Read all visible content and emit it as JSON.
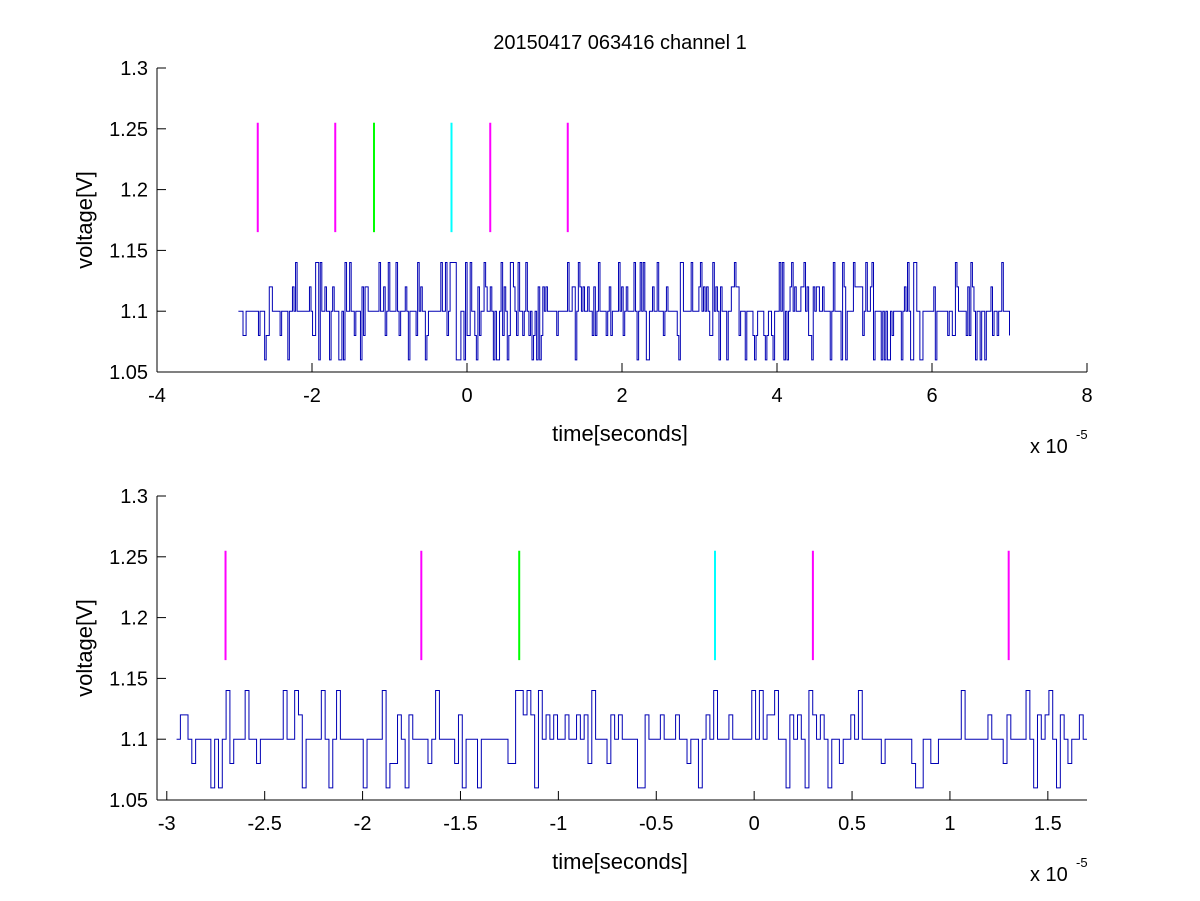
{
  "title": "20150417 063416 channel 1",
  "chart_data": [
    {
      "type": "line",
      "xlabel": "time[seconds]",
      "ylabel": "voltage[V]",
      "x_multiplier": "x 10",
      "x_exponent": "-5",
      "xlim": [
        -4,
        8
      ],
      "ylim": [
        1.05,
        1.3
      ],
      "x_ticks": [
        -4,
        -2,
        0,
        2,
        4,
        6,
        8
      ],
      "x_tick_labels": [
        "-4",
        "-2",
        "0",
        "2",
        "4",
        "6",
        "8"
      ],
      "y_ticks": [
        1.05,
        1.1,
        1.15,
        1.2,
        1.25,
        1.3
      ],
      "y_tick_labels": [
        "1.05",
        "1.1",
        "1.15",
        "1.2",
        "1.25",
        "1.3"
      ],
      "grid": false,
      "series": [
        {
          "role": "signal",
          "color": "#0000b4",
          "x_range": [
            -2.95,
            7.0
          ],
          "values_observed": [
            1.06,
            1.08,
            1.1,
            1.12,
            1.14
          ],
          "baseline": 1.1,
          "sample_count": 500,
          "seed": 17
        }
      ],
      "markers": [
        {
          "x": -2.7,
          "y_range": [
            1.165,
            1.255
          ],
          "color": "#ff00ff"
        },
        {
          "x": -1.7,
          "y_range": [
            1.165,
            1.255
          ],
          "color": "#ff00ff"
        },
        {
          "x": -1.2,
          "y_range": [
            1.165,
            1.255
          ],
          "color": "#00ff00"
        },
        {
          "x": -0.2,
          "y_range": [
            1.165,
            1.255
          ],
          "color": "#00ffff"
        },
        {
          "x": 0.3,
          "y_range": [
            1.165,
            1.255
          ],
          "color": "#ff00ff"
        },
        {
          "x": 1.3,
          "y_range": [
            1.165,
            1.255
          ],
          "color": "#ff00ff"
        }
      ]
    },
    {
      "type": "line",
      "xlabel": "time[seconds]",
      "ylabel": "voltage[V]",
      "x_multiplier": "x 10",
      "x_exponent": "-5",
      "xlim": [
        -3.05,
        1.7
      ],
      "ylim": [
        1.05,
        1.3
      ],
      "x_ticks": [
        -3,
        -2.5,
        -2,
        -1.5,
        -1,
        -0.5,
        0,
        0.5,
        1,
        1.5
      ],
      "x_tick_labels": [
        "-3",
        "-2.5",
        "-2",
        "-1.5",
        "-1",
        "-0.5",
        "0",
        "0.5",
        "1",
        "1.5"
      ],
      "y_ticks": [
        1.05,
        1.1,
        1.15,
        1.2,
        1.25,
        1.3
      ],
      "y_tick_labels": [
        "1.05",
        "1.1",
        "1.15",
        "1.2",
        "1.25",
        "1.3"
      ],
      "grid": false,
      "series": [
        {
          "role": "signal",
          "color": "#0000b4",
          "x_range": [
            -2.95,
            1.7
          ],
          "values_observed": [
            1.06,
            1.08,
            1.1,
            1.12,
            1.14
          ],
          "baseline": 1.1,
          "sample_count": 240,
          "seed": 29
        }
      ],
      "markers": [
        {
          "x": -2.7,
          "y_range": [
            1.165,
            1.255
          ],
          "color": "#ff00ff"
        },
        {
          "x": -1.7,
          "y_range": [
            1.165,
            1.255
          ],
          "color": "#ff00ff"
        },
        {
          "x": -1.2,
          "y_range": [
            1.165,
            1.255
          ],
          "color": "#00ff00"
        },
        {
          "x": -0.2,
          "y_range": [
            1.165,
            1.255
          ],
          "color": "#00ffff"
        },
        {
          "x": 0.3,
          "y_range": [
            1.165,
            1.255
          ],
          "color": "#ff00ff"
        },
        {
          "x": 1.3,
          "y_range": [
            1.165,
            1.255
          ],
          "color": "#ff00ff"
        }
      ]
    }
  ]
}
